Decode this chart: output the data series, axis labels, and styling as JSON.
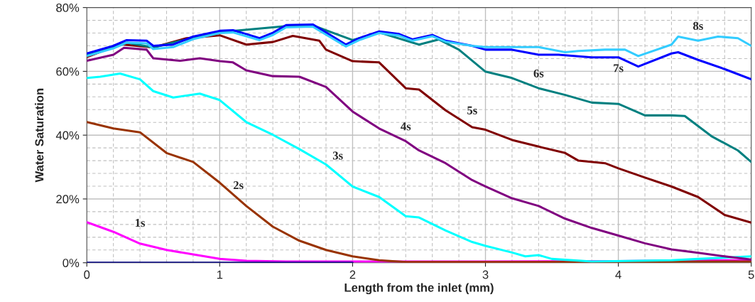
{
  "chart_data": {
    "type": "line",
    "xlabel": "Length from the inlet (mm)",
    "ylabel": "Water Saturation",
    "xlim": [
      0,
      5
    ],
    "ylim": [
      0,
      80
    ],
    "xticks": [
      0,
      1,
      2,
      3,
      4,
      5
    ],
    "yticks": [
      {
        "value": 0,
        "label": "0%"
      },
      {
        "value": 20,
        "label": "20%"
      },
      {
        "value": 40,
        "label": "40%"
      },
      {
        "value": 60,
        "label": "60%"
      },
      {
        "value": 80,
        "label": "80%"
      }
    ],
    "grid": true,
    "marker": "none",
    "line_style": "solid",
    "series": [
      {
        "color": "#000080",
        "x": [
          0,
          1,
          2
        ],
        "values": [
          0,
          0,
          0
        ]
      },
      {
        "name": "1s",
        "color": "#ff00ff",
        "x": [
          0,
          0.2,
          0.4,
          0.6,
          0.8,
          1.0,
          1.2,
          1.5,
          2,
          3,
          4,
          4.6,
          5
        ],
        "values": [
          12.7,
          9.7,
          6,
          4,
          2.6,
          1.2,
          0.6,
          0.4,
          0.4,
          0.4,
          0.5,
          0.8,
          0.8
        ]
      },
      {
        "name": "2s",
        "color": "#993300",
        "x": [
          0,
          0.2,
          0.4,
          0.6,
          0.8,
          1.0,
          1.2,
          1.4,
          1.6,
          1.8,
          2.0,
          2.2,
          2.4,
          3,
          4,
          5
        ],
        "values": [
          44.1,
          42.1,
          40.9,
          34.4,
          31.6,
          25.1,
          17.8,
          11.3,
          6.9,
          4,
          2,
          0.8,
          0.2,
          0.2,
          0.3,
          0.4
        ]
      },
      {
        "name": "3s",
        "color": "#00ffff",
        "x": [
          0,
          0.1,
          0.25,
          0.4,
          0.5,
          0.65,
          0.85,
          1.0,
          1.2,
          1.4,
          1.6,
          1.8,
          2.0,
          2.2,
          2.4,
          2.5,
          2.7,
          2.9,
          3.0,
          3.2,
          3.3,
          3.4,
          3.5,
          3.8,
          4.4,
          4.6,
          5.0
        ],
        "values": [
          57.9,
          58.3,
          59.3,
          57.5,
          53.8,
          51.8,
          53,
          51,
          44.1,
          40.1,
          35.6,
          30.8,
          23.9,
          20.6,
          14.6,
          14.2,
          10.1,
          6.5,
          5.3,
          3.2,
          2,
          2.4,
          1.2,
          0.4,
          0.8,
          1.2,
          2
        ]
      },
      {
        "name": "4s",
        "color": "#800080",
        "x": [
          0,
          0.2,
          0.28,
          0.45,
          0.5,
          0.7,
          0.85,
          1.0,
          1.1,
          1.2,
          1.4,
          1.6,
          1.8,
          2.0,
          2.2,
          2.4,
          2.5,
          2.7,
          2.9,
          3.0,
          3.2,
          3.4,
          3.6,
          3.8,
          4.0,
          4.2,
          4.4,
          4.6,
          4.8,
          5.0
        ],
        "values": [
          63.3,
          65.2,
          67.4,
          66.8,
          64.1,
          63.3,
          64.1,
          63.2,
          62.8,
          60.3,
          58.5,
          58.3,
          55.1,
          47.4,
          42.1,
          38.1,
          35.2,
          31.2,
          25.9,
          23.9,
          20.2,
          17.8,
          13.8,
          10.9,
          8.5,
          6.1,
          4.2,
          3.1,
          2,
          1
        ]
      },
      {
        "name": "5s",
        "color": "#800000",
        "x": [
          0,
          0.25,
          0.5,
          0.75,
          1.0,
          1.2,
          1.4,
          1.55,
          1.75,
          1.8,
          2.0,
          2.2,
          2.4,
          2.5,
          2.7,
          2.9,
          3.0,
          3.2,
          3.4,
          3.6,
          3.7,
          3.9,
          4.0,
          4.2,
          4.4,
          4.6,
          4.8,
          5.0
        ],
        "values": [
          64.5,
          68.5,
          67.5,
          70.4,
          71.3,
          68.4,
          69.2,
          71.1,
          69.6,
          66.8,
          63.2,
          62.8,
          54.7,
          54.3,
          47.8,
          42.5,
          41.7,
          38.5,
          36.4,
          34.4,
          32,
          31.2,
          29.6,
          26.7,
          23.9,
          20.6,
          15,
          12.6
        ]
      },
      {
        "name": "6s",
        "color": "#008080",
        "x": [
          0,
          0.3,
          0.5,
          0.8,
          1.0,
          1.5,
          1.7,
          2.0,
          2.2,
          2.5,
          2.65,
          2.8,
          3.0,
          3.2,
          3.4,
          3.6,
          3.8,
          4.0,
          4.2,
          4.4,
          4.5,
          4.7,
          4.9,
          5.0
        ],
        "values": [
          65,
          69,
          67.5,
          70.5,
          72.3,
          74.2,
          74.4,
          69.8,
          72.2,
          68.4,
          70,
          66.8,
          59.9,
          57.9,
          54.7,
          52.6,
          50.2,
          49.8,
          46.2,
          46.2,
          46,
          39.7,
          35.2,
          31.6
        ]
      },
      {
        "name": "7s",
        "color": "#0000ff",
        "x": [
          0,
          0.2,
          0.3,
          0.45,
          0.5,
          0.65,
          0.8,
          1.0,
          1.1,
          1.2,
          1.3,
          1.4,
          1.5,
          1.7,
          1.8,
          1.95,
          2.05,
          2.2,
          2.35,
          2.45,
          2.6,
          2.7,
          2.9,
          3.0,
          3.2,
          3.4,
          3.55,
          3.8,
          4.0,
          4.15,
          4.4,
          4.45,
          4.6,
          4.8,
          5.0
        ],
        "values": [
          65.6,
          68,
          69.8,
          69.6,
          68,
          68.4,
          70.9,
          72.7,
          72.9,
          71.7,
          70.4,
          72.1,
          74.5,
          74.7,
          72.2,
          68.4,
          70.4,
          72.5,
          71.7,
          70,
          71.4,
          69.6,
          68,
          66.8,
          66.8,
          65.2,
          65.2,
          64.4,
          64.4,
          61.5,
          65.6,
          66,
          63.6,
          60.7,
          57.5
        ]
      },
      {
        "name": "8s",
        "color": "#33ccff",
        "x": [
          0,
          0.2,
          0.3,
          0.45,
          0.5,
          0.65,
          0.8,
          1.0,
          1.1,
          1.2,
          1.3,
          1.4,
          1.5,
          1.7,
          1.8,
          1.95,
          2.05,
          2.2,
          2.35,
          2.45,
          2.6,
          2.7,
          2.9,
          3.0,
          3.2,
          3.4,
          3.6,
          3.7,
          3.9,
          4.05,
          4.15,
          4.4,
          4.45,
          4.6,
          4.75,
          4.9,
          5.0
        ],
        "values": [
          64.8,
          67.2,
          69,
          68.8,
          67,
          67.6,
          70.1,
          72,
          72.2,
          71,
          69.8,
          71.4,
          73.8,
          74,
          71.5,
          67.8,
          69.8,
          72,
          71.2,
          69.6,
          71,
          69.3,
          68,
          67.6,
          67.6,
          67.6,
          66,
          66.4,
          66.8,
          66.8,
          64.8,
          68.4,
          70.9,
          69.6,
          70.9,
          70.4,
          68
        ]
      }
    ]
  }
}
